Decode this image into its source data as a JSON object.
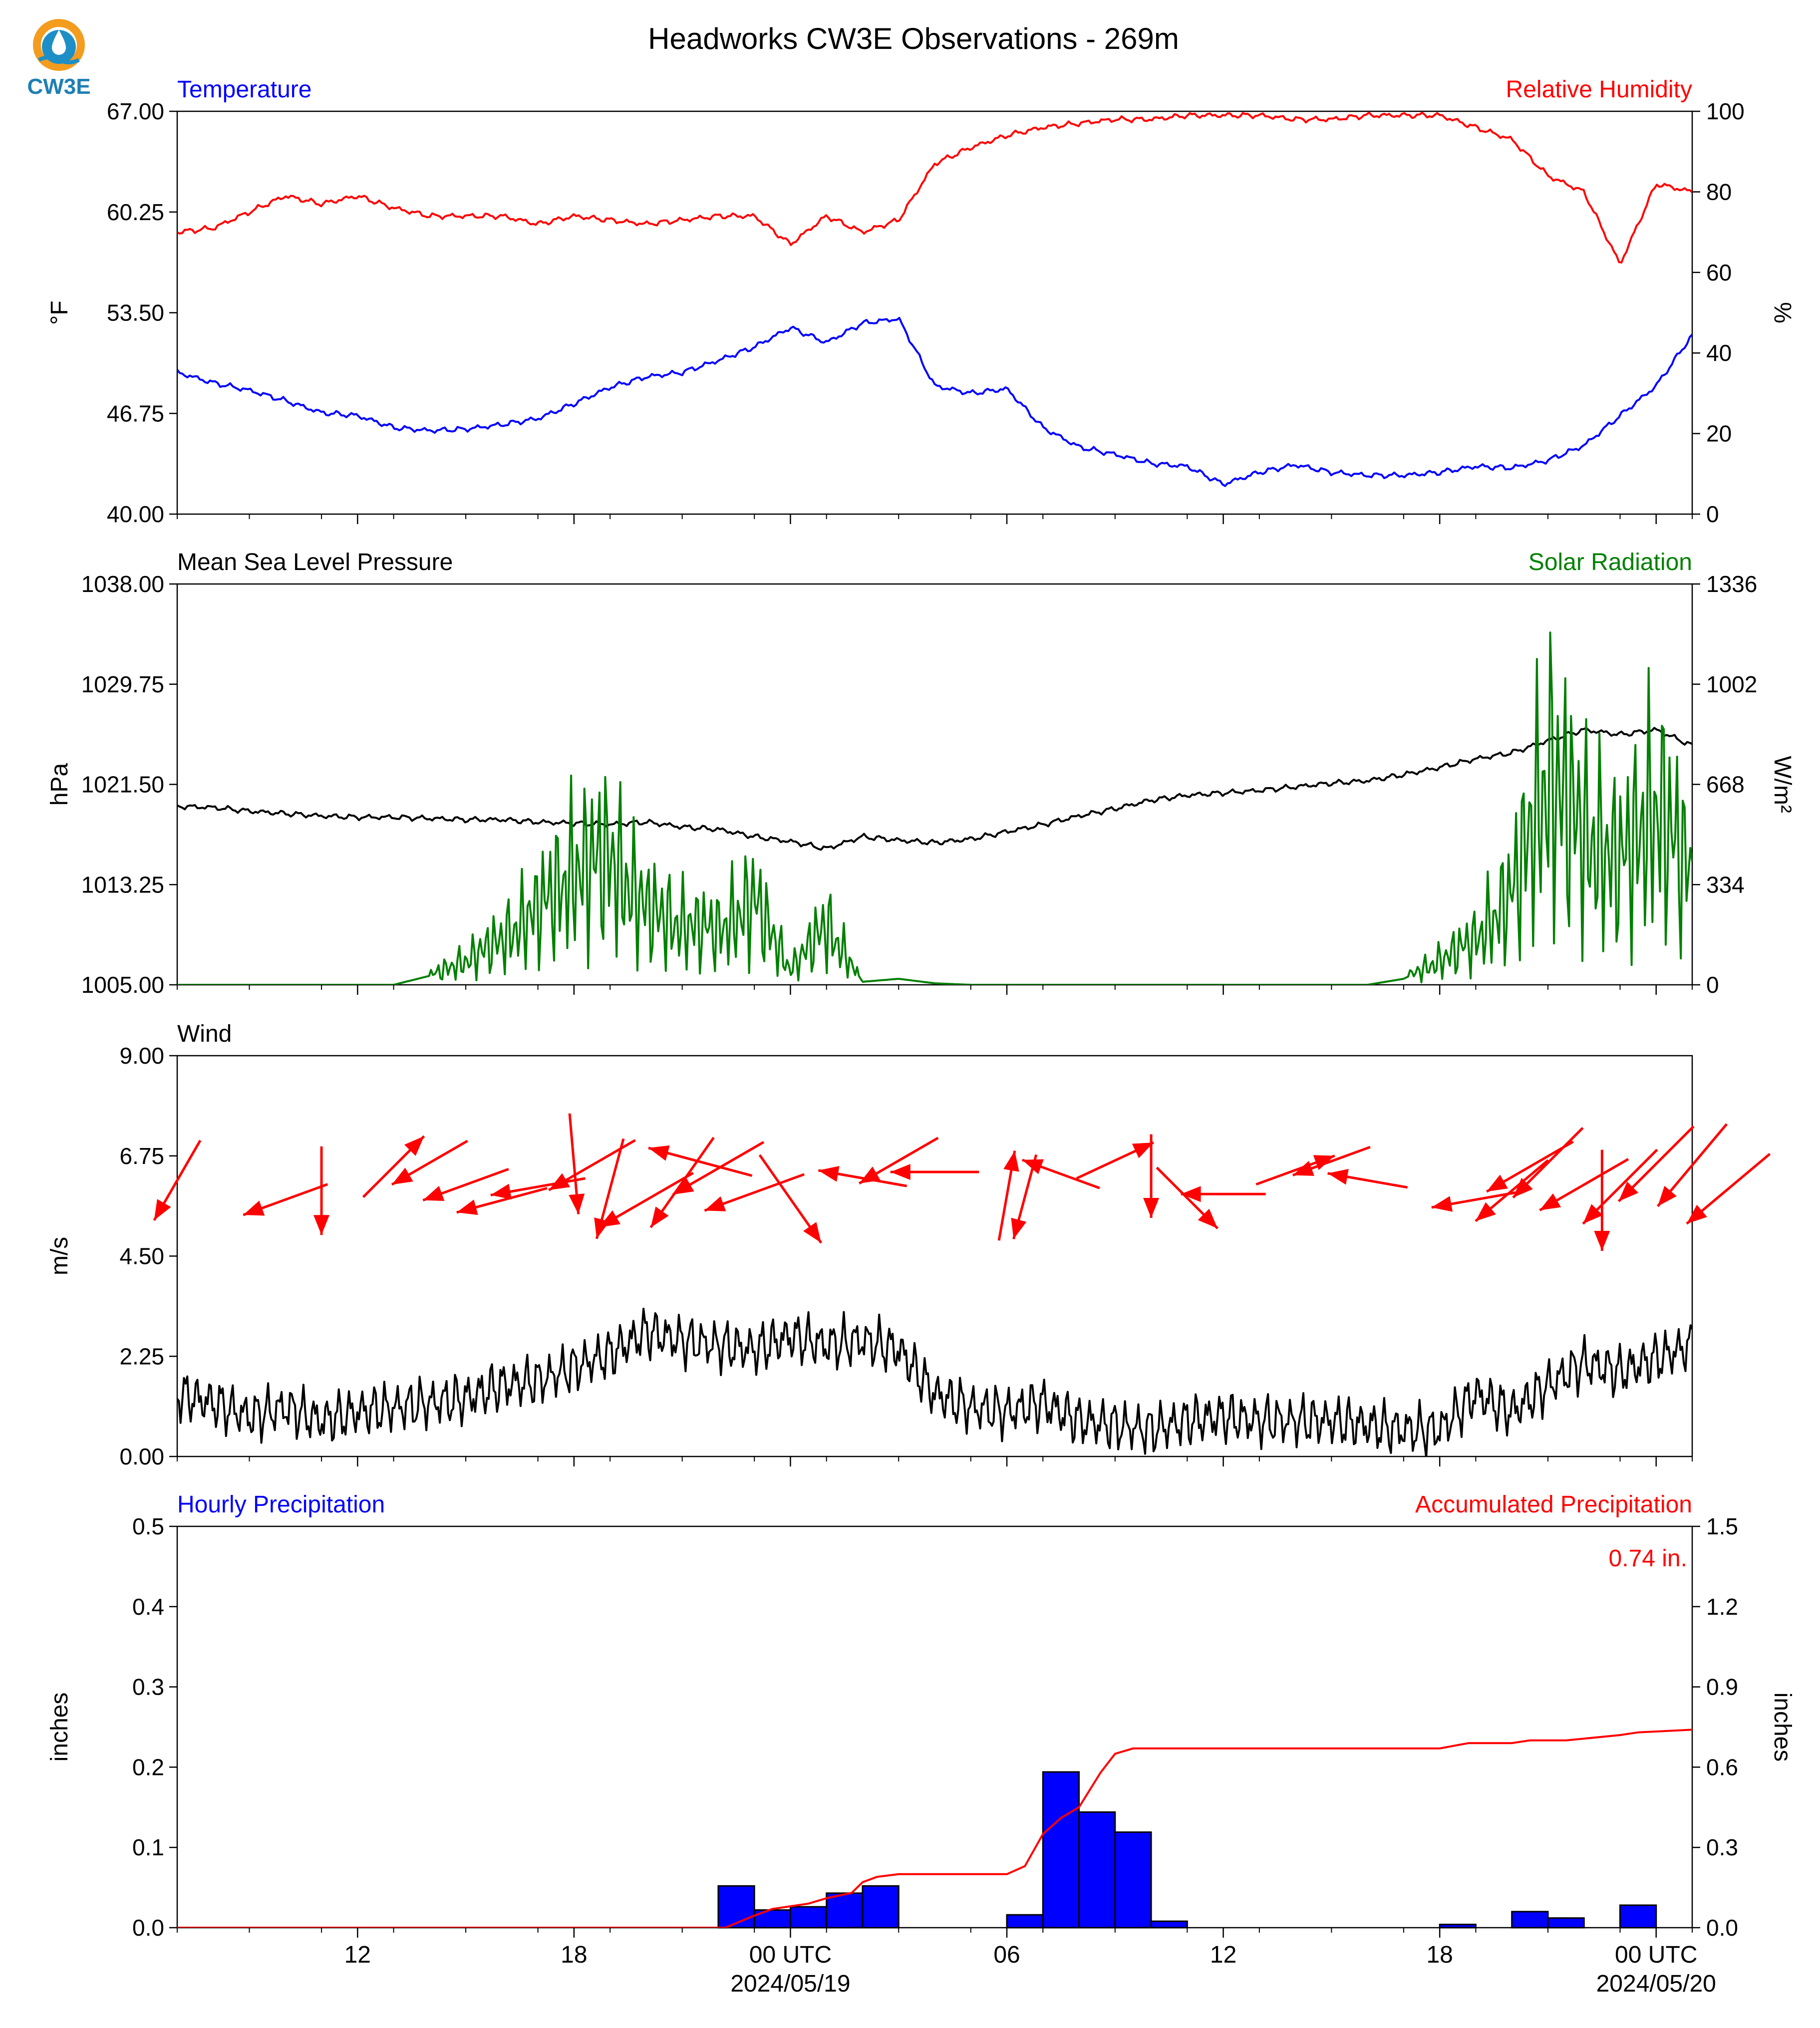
{
  "logo": {
    "text": "CW3E",
    "icon": "water-drop-sun-logo-icon",
    "colors": {
      "ring": "#f39c1e",
      "water": "#1e8fc6",
      "text": "#1e7fb3"
    }
  },
  "title": "Headworks CW3E Observations - 269m",
  "colors": {
    "temperature": "#0000ff",
    "humidity": "#ff0000",
    "pressure": "#000000",
    "solar": "#008000",
    "wind_speed": "#000000",
    "wind_arrows": "#ff0000",
    "hourly_precip": "#0000ff",
    "accum_precip": "#ff0000"
  },
  "x_axis": {
    "type": "datetime",
    "start": "2024-05-18 07:00 UTC",
    "end": "2024-05-20 01:00 UTC",
    "major_ticks": [
      {
        "label": "12",
        "time": "2024-05-18 12:00"
      },
      {
        "label": "18",
        "time": "2024-05-18 18:00"
      },
      {
        "label": "00 UTC",
        "sublabel": "2024/05/19",
        "time": "2024-05-19 00:00"
      },
      {
        "label": "06",
        "time": "2024-05-19 06:00"
      },
      {
        "label": "12",
        "time": "2024-05-19 12:00"
      },
      {
        "label": "18",
        "time": "2024-05-19 18:00"
      },
      {
        "label": "00 UTC",
        "sublabel": "2024/05/20",
        "time": "2024-05-20 00:00"
      }
    ],
    "minor_tick_interval_hours": 2
  },
  "chart_data": [
    {
      "type": "line",
      "panel": "temperature-humidity",
      "left_title": "Temperature",
      "right_title": "Relative Humidity",
      "ylabel": "°F",
      "ylim": [
        40.0,
        67.0
      ],
      "yticks": [
        "40.00",
        "46.75",
        "53.50",
        "60.25",
        "67.00"
      ],
      "ylabel_right": "%",
      "ylim_right": [
        0,
        100
      ],
      "yticks_right": [
        "0",
        "20",
        "40",
        "60",
        "80",
        "100"
      ],
      "hours": [
        0,
        1,
        2,
        3,
        4,
        5,
        6,
        7,
        8,
        9,
        10,
        11,
        12,
        13,
        14,
        15,
        16,
        17,
        18,
        19,
        20,
        21,
        22,
        23,
        24,
        25,
        26,
        27,
        28,
        29,
        30,
        31,
        32,
        33,
        34,
        35,
        36,
        37,
        38,
        39,
        40,
        41,
        42
      ],
      "series": [
        {
          "name": "Temperature",
          "axis": "left",
          "values": [
            49.5,
            48.8,
            48.3,
            47.6,
            46.8,
            46.6,
            45.8,
            45.6,
            45.7,
            46.0,
            46.4,
            47.4,
            48.5,
            49.2,
            49.5,
            50.3,
            51.2,
            52.5,
            51.5,
            52.8,
            53.1,
            48.6,
            48.1,
            48.4,
            45.8,
            44.5,
            44.0,
            43.4,
            43.2,
            42.0,
            42.8,
            43.3,
            42.8,
            42.6,
            42.6,
            42.8,
            43.2,
            43.1,
            43.6,
            44.6,
            46.6,
            48.6,
            52.0
          ]
        },
        {
          "name": "Relative Humidity",
          "axis": "right",
          "values": [
            70,
            71,
            75,
            79,
            77,
            79,
            76,
            74,
            74,
            74,
            72,
            74,
            73,
            72,
            73,
            74,
            74,
            67,
            74,
            70,
            73,
            87,
            91,
            94,
            96,
            97,
            98,
            98,
            99,
            99,
            99,
            98,
            98,
            99,
            99,
            99,
            96,
            93,
            84,
            80,
            62,
            82,
            80
          ]
        }
      ]
    },
    {
      "type": "line",
      "panel": "pressure-solar",
      "left_title": "Mean Sea Level Pressure",
      "right_title": "Solar Radiation",
      "ylabel": "hPa",
      "ylim": [
        1005.0,
        1038.0
      ],
      "yticks": [
        "1005.00",
        "1013.25",
        "1021.50",
        "1029.75",
        "1038.00"
      ],
      "ylabel_right": "W/m²",
      "ylim_right": [
        0,
        1336
      ],
      "yticks_right": [
        "0",
        "334",
        "668",
        "1002",
        "1336"
      ],
      "hours": [
        0,
        1,
        2,
        3,
        4,
        5,
        6,
        7,
        8,
        9,
        10,
        11,
        12,
        13,
        14,
        15,
        16,
        17,
        18,
        19,
        20,
        21,
        22,
        23,
        24,
        25,
        26,
        27,
        28,
        29,
        30,
        31,
        32,
        33,
        34,
        35,
        36,
        37,
        38,
        39,
        40,
        41,
        42
      ],
      "series": [
        {
          "name": "Mean Sea Level Pressure",
          "axis": "left",
          "values": [
            1019.7,
            1019.6,
            1019.3,
            1019.1,
            1018.9,
            1018.8,
            1018.8,
            1018.7,
            1018.6,
            1018.6,
            1018.4,
            1018.3,
            1018.2,
            1018.4,
            1018.0,
            1017.8,
            1017.2,
            1016.8,
            1016.2,
            1017.2,
            1016.9,
            1016.7,
            1017.0,
            1017.6,
            1018.2,
            1018.9,
            1019.5,
            1020.2,
            1020.6,
            1020.8,
            1021.0,
            1021.3,
            1021.6,
            1021.8,
            1022.3,
            1022.9,
            1023.6,
            1024.1,
            1025.1,
            1026.0,
            1025.6,
            1026.0,
            1024.7
          ]
        },
        {
          "name": "Solar Radiation",
          "axis": "right",
          "values": [
            0,
            0,
            0,
            0,
            0,
            0,
            0,
            30,
            80,
            150,
            250,
            380,
            420,
            250,
            200,
            180,
            280,
            50,
            200,
            10,
            20,
            5,
            0,
            0,
            0,
            0,
            0,
            0,
            0,
            0,
            0,
            0,
            0,
            0,
            20,
            80,
            150,
            300,
            700,
            500,
            400,
            600,
            350
          ]
        }
      ]
    },
    {
      "type": "line",
      "panel": "wind",
      "left_title": "Wind",
      "ylabel": "m/s",
      "ylim": [
        0.0,
        9.0
      ],
      "yticks": [
        "0.00",
        "2.25",
        "4.50",
        "6.75",
        "9.00"
      ],
      "hours": [
        0,
        1,
        2,
        3,
        4,
        5,
        6,
        7,
        8,
        9,
        10,
        11,
        12,
        13,
        14,
        15,
        16,
        17,
        18,
        19,
        20,
        21,
        22,
        23,
        24,
        25,
        26,
        27,
        28,
        29,
        30,
        31,
        32,
        33,
        34,
        35,
        36,
        37,
        38,
        39,
        40,
        41,
        42
      ],
      "series": [
        {
          "name": "Wind Speed",
          "axis": "left",
          "values": [
            1.4,
            1.2,
            0.9,
            1.1,
            0.8,
            1.0,
            1.1,
            1.2,
            1.3,
            1.6,
            1.7,
            2.0,
            2.3,
            2.8,
            2.6,
            2.5,
            2.4,
            2.7,
            2.5,
            2.6,
            2.4,
            1.4,
            1.1,
            1.0,
            1.2,
            0.8,
            0.7,
            0.6,
            0.8,
            0.9,
            0.8,
            0.8,
            0.8,
            0.7,
            0.6,
            0.6,
            1.4,
            1.0,
            1.6,
            2.1,
            1.9,
            2.2,
            2.5
          ]
        }
      ],
      "wind_barbs": {
        "note": "arrows point toward the direction the wind blows",
        "hours": [
          0,
          3,
          4,
          6,
          7,
          8,
          9,
          10,
          11,
          11.5,
          12,
          13,
          14,
          14.5,
          15,
          16,
          17,
          19,
          20,
          21,
          23,
          23.5,
          24.5,
          26,
          27,
          28,
          29,
          31,
          32,
          33,
          36,
          37,
          37.5,
          38,
          39,
          39.5,
          40,
          41,
          42,
          43
        ],
        "direction_deg": [
          330,
          290,
          0,
          135,
          300,
          290,
          285,
          280,
          5,
          300,
          345,
          300,
          325,
          255,
          300,
          290,
          35,
          260,
          300,
          270,
          170,
          345,
          250,
          115,
          0,
          45,
          270,
          110,
          290,
          260,
          280,
          310,
          300,
          315,
          300,
          0,
          315,
          315,
          320,
          310
        ],
        "speed": [
          1.4,
          1.2,
          1.1,
          0.9,
          1.0,
          1.3,
          1.5,
          1.7,
          2.1,
          2.0,
          2.3,
          2.7,
          2.8,
          2.6,
          2.4,
          2.5,
          2.6,
          1.2,
          1.3,
          1.1,
          1.3,
          1.0,
          0.6,
          0.8,
          0.7,
          0.9,
          0.8,
          0.7,
          0.6,
          0.5,
          1.2,
          1.6,
          2.0,
          1.9,
          2.2,
          2.1,
          2.4,
          2.5,
          2.6,
          2.7
        ]
      }
    },
    {
      "type": "bar",
      "panel": "precipitation",
      "left_title": "Hourly Precipitation",
      "right_title": "Accumulated Precipitation",
      "annotation": "0.74 in.",
      "ylabel": "inches",
      "ylim": [
        0.0,
        0.5
      ],
      "yticks": [
        "0.0",
        "0.1",
        "0.2",
        "0.3",
        "0.4",
        "0.5"
      ],
      "ylabel_right": "inches",
      "ylim_right": [
        0.0,
        1.5
      ],
      "yticks_right": [
        "0.0",
        "0.3",
        "0.6",
        "0.9",
        "1.2",
        "1.5"
      ],
      "bars": {
        "name": "Hourly Precipitation",
        "hours": [
          15.5,
          16.5,
          17.5,
          18.5,
          19.5,
          23.5,
          24.5,
          25.5,
          26.5,
          27.5,
          35.5,
          37.5,
          38.5,
          40.5
        ],
        "values": [
          0.052,
          0.022,
          0.026,
          0.043,
          0.052,
          0.016,
          0.194,
          0.144,
          0.119,
          0.008,
          0.004,
          0.02,
          0.012,
          0.028
        ]
      },
      "accumulated": {
        "name": "Accumulated Precipitation",
        "hours": [
          0,
          15.2,
          15.9,
          16.5,
          17.0,
          17.5,
          18.0,
          18.7,
          19.0,
          19.4,
          20.0,
          22.5,
          23.0,
          23.5,
          24.0,
          24.5,
          25.0,
          25.6,
          26.0,
          26.5,
          27.0,
          30.0,
          33.0,
          35.0,
          35.8,
          37.0,
          37.5,
          38.5,
          40.0,
          40.5,
          42.0
        ],
        "values": [
          0.0,
          0.0,
          0.04,
          0.07,
          0.08,
          0.09,
          0.11,
          0.13,
          0.17,
          0.19,
          0.2,
          0.2,
          0.2,
          0.23,
          0.35,
          0.41,
          0.45,
          0.58,
          0.65,
          0.67,
          0.67,
          0.67,
          0.67,
          0.67,
          0.69,
          0.69,
          0.7,
          0.7,
          0.72,
          0.73,
          0.74
        ]
      }
    }
  ]
}
